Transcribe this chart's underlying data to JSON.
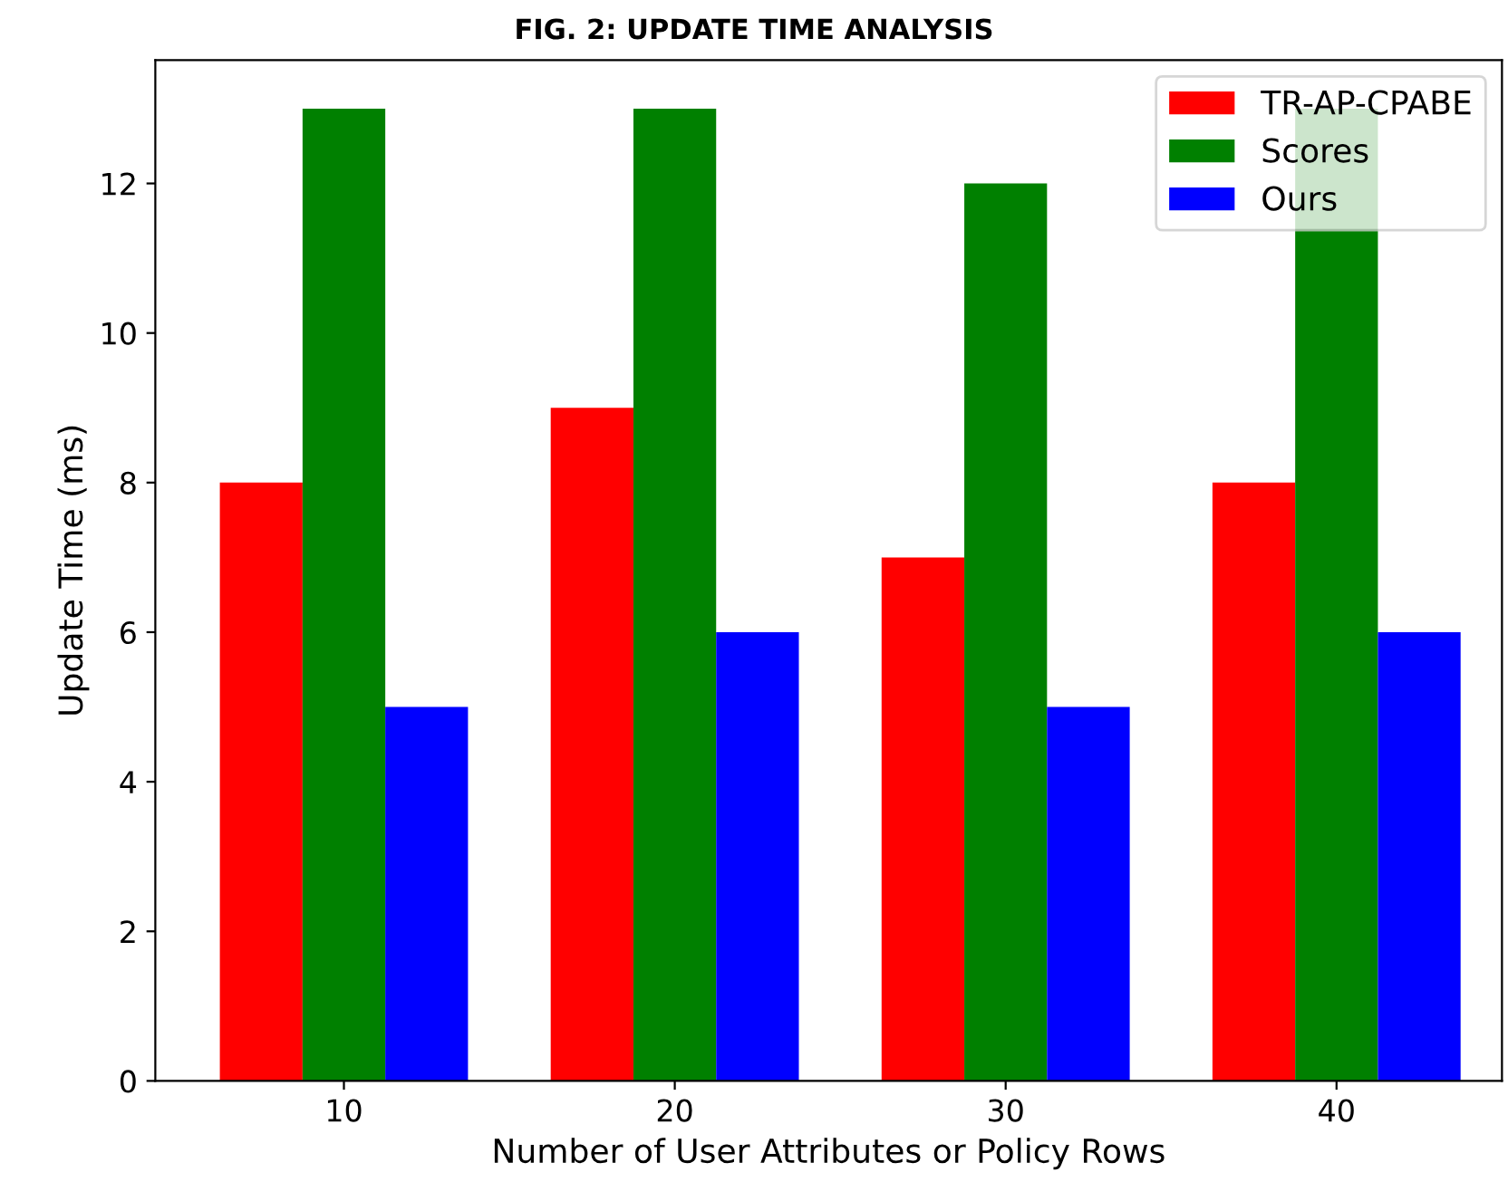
{
  "chart_data": {
    "type": "bar",
    "title": "FIG. 2: UPDATE TIME ANALYSIS",
    "xlabel": "Number of User Attributes or Policy Rows",
    "ylabel": "Update Time (ms)",
    "categories": [
      "10",
      "20",
      "30",
      "40"
    ],
    "series": [
      {
        "name": "TR-AP-CPABE",
        "color": "#ff0000",
        "values": [
          8,
          9,
          7,
          8
        ]
      },
      {
        "name": "Scores",
        "color": "#008000",
        "values": [
          13,
          13,
          12,
          13
        ]
      },
      {
        "name": "Ours",
        "color": "#0000ff",
        "values": [
          5,
          6,
          5,
          6
        ]
      }
    ],
    "ylim": [
      0,
      13.65
    ],
    "yticks": [
      0,
      2,
      4,
      6,
      8,
      10,
      12
    ],
    "grid": false,
    "legend": "top right"
  }
}
